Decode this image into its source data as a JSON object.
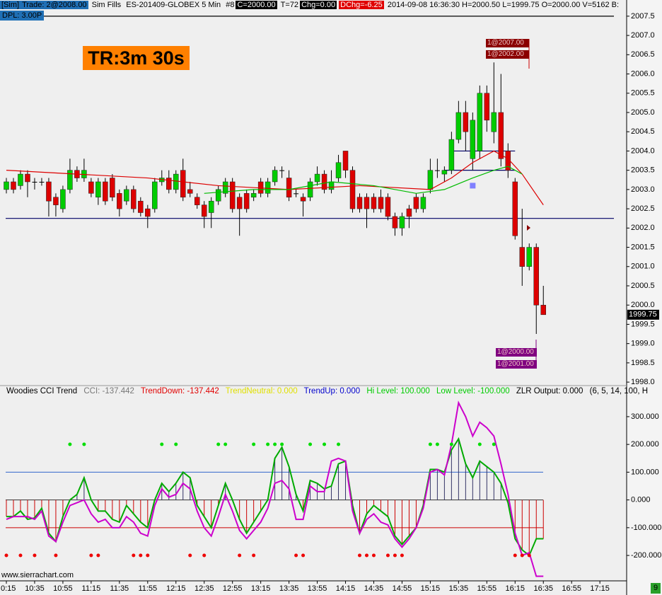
{
  "header": {
    "sim": "[Sim]",
    "trade": "Trade: 2@2008.00",
    "fills": "Sim Fills",
    "symbol": "ES-201409-GLOBEX  5 Min",
    "num": "#8",
    "close": "C=2000.00",
    "t": "T=72",
    "chg": "Chg=0.00",
    "dchg": "DChg=-6.25",
    "info": "2014-09-08 16:36:30 H=2000.50 L=1999.75 O=2000.00 V=5162 B:",
    "dpl": "DPL: 3.00P"
  },
  "timer": "TR:3m 30s",
  "orders": {
    "top": [
      "1@2007.00",
      "1@2002.00"
    ],
    "bottom": [
      "1@2000.00",
      "1@2001.00"
    ]
  },
  "indicator_legend": [
    "Woodies CCI Trend",
    "CCI: -137.442",
    "TrendDown: -137.442",
    "TrendNeutral: 0.000",
    "TrendUp: 0.000",
    "Hi Level: 100.000",
    "Low Level: -100.000",
    "ZLR Output: 0.000",
    "(6, 5, 14, 100, H"
  ],
  "website": "www.sierrachart.com",
  "corner": "9",
  "time_axis": [
    "0:15",
    "10:35",
    "10:55",
    "11:15",
    "11:35",
    "11:55",
    "12:15",
    "12:35",
    "12:55",
    "13:15",
    "13:35",
    "13:55",
    "14:15",
    "14:35",
    "14:55",
    "15:15",
    "15:35",
    "15:55",
    "16:15",
    "16:35",
    "16:55",
    "17:15"
  ],
  "chart_data": [
    {
      "type": "candlestick",
      "up_color": "#00cc00",
      "down_color": "#dd0000",
      "open": [
        2003.0,
        2003.2,
        2003.1,
        2003.4,
        2003.2,
        2003.2,
        2003.2,
        2002.8,
        2002.5,
        2003.0,
        2003.5,
        2003.3,
        2003.2,
        2002.8,
        2003.2,
        2003.3,
        2002.9,
        2002.7,
        2003.0,
        2002.7,
        2002.5,
        2002.5,
        2003.2,
        2003.3,
        2003.0,
        2003.5,
        2003.0,
        2002.8,
        2002.6,
        2002.4,
        2002.7,
        2002.9,
        2003.2,
        2002.8,
        2002.9,
        2002.8,
        2003.2,
        2002.9,
        2003.2,
        2003.5,
        2003.3,
        2002.9,
        2002.8,
        2002.8,
        2003.2,
        2003.4,
        2003.0,
        2003.3,
        2004.0,
        2003.5,
        2002.8,
        2002.8,
        2002.8,
        2002.8,
        2002.8,
        2002.3,
        2002.0,
        2002.5,
        2002.8,
        2002.5,
        2003.0,
        2003.5,
        2003.4,
        2003.5,
        2004.3,
        2005.0,
        2003.8,
        2004.0,
        2005.5,
        2004.5,
        2005.0,
        2004.0,
        2003.2,
        2001.5,
        2001.0,
        2001.5,
        2000.0
      ],
      "high": [
        2003.3,
        2003.3,
        2003.5,
        2003.5,
        2003.3,
        2003.3,
        2003.3,
        2002.9,
        2003.1,
        2003.8,
        2003.6,
        2003.8,
        2003.3,
        2003.3,
        2003.3,
        2003.4,
        2003.0,
        2003.1,
        2003.1,
        2002.8,
        2002.6,
        2003.3,
        2003.5,
        2003.5,
        2003.5,
        2003.8,
        2003.2,
        2002.9,
        2002.7,
        2002.8,
        2003.1,
        2003.3,
        2003.3,
        2002.9,
        2003.0,
        2003.0,
        2003.3,
        2003.3,
        2003.6,
        2003.6,
        2003.5,
        2003.0,
        2002.9,
        2003.3,
        2003.6,
        2003.5,
        2003.5,
        2003.9,
        2004.0,
        2003.6,
        2002.9,
        2002.9,
        2002.9,
        2003.0,
        2002.9,
        2002.4,
        2002.4,
        2002.6,
        2002.9,
        2002.9,
        2003.8,
        2003.8,
        2003.6,
        2004.5,
        2005.3,
        2005.3,
        2005.0,
        2005.7,
        2005.7,
        2006.3,
        2006.0,
        2004.2,
        2003.3,
        2002.5,
        2001.6,
        2001.6,
        2000.5
      ],
      "low": [
        2002.9,
        2002.9,
        2003.0,
        2002.8,
        2003.0,
        2003.1,
        2002.3,
        2002.3,
        2002.4,
        2002.9,
        2003.2,
        2003.2,
        2002.8,
        2002.6,
        2002.6,
        2002.7,
        2002.3,
        2002.6,
        2002.4,
        2002.3,
        2002.0,
        2002.4,
        2003.1,
        2002.9,
        2002.9,
        2002.7,
        2002.8,
        2002.5,
        2002.0,
        2002.0,
        2002.6,
        2002.8,
        2002.4,
        2001.8,
        2002.4,
        2002.7,
        2002.8,
        2002.8,
        2003.1,
        2003.3,
        2002.7,
        2002.8,
        2002.3,
        2002.7,
        2003.1,
        2002.9,
        2002.9,
        2003.2,
        2003.3,
        2002.4,
        2002.4,
        2002.0,
        2002.4,
        2002.4,
        2002.2,
        2001.8,
        2001.8,
        2002.0,
        2002.4,
        2002.4,
        2002.9,
        2003.3,
        2003.2,
        2003.4,
        2004.2,
        2004.0,
        2003.5,
        2003.8,
        2004.5,
        2004.2,
        2003.6,
        2003.3,
        2001.7,
        2000.5,
        2000.9,
        1999.25,
        1999.75
      ],
      "close": [
        2003.2,
        2003.0,
        2003.4,
        2003.2,
        2003.2,
        2003.2,
        2002.7,
        2002.6,
        2003.0,
        2003.5,
        2003.3,
        2003.5,
        2002.9,
        2003.2,
        2002.7,
        2002.8,
        2002.5,
        2003.0,
        2002.5,
        2002.4,
        2002.3,
        2003.2,
        2003.3,
        2003.0,
        2003.4,
        2002.8,
        2002.9,
        2002.6,
        2002.3,
        2002.7,
        2003.0,
        2003.2,
        2002.5,
        2002.5,
        2002.5,
        2002.9,
        2002.9,
        2003.2,
        2003.5,
        2003.5,
        2002.8,
        2002.9,
        2002.7,
        2003.2,
        2003.4,
        2003.0,
        2003.2,
        2003.7,
        2003.5,
        2002.5,
        2002.5,
        2002.5,
        2002.5,
        2002.5,
        2002.3,
        2002.0,
        2002.3,
        2002.3,
        2002.5,
        2002.8,
        2003.5,
        2003.5,
        2003.5,
        2004.3,
        2005.0,
        2004.5,
        2004.8,
        2005.5,
        2004.8,
        2005.0,
        2003.8,
        2003.5,
        2001.8,
        2001.0,
        2001.5,
        2000.0,
        1999.75
      ],
      "series": [
        {
          "name": "MA slow",
          "color": "#dd0000",
          "x": [
            0,
            10,
            20,
            30,
            40,
            50,
            60,
            63,
            66,
            69,
            71,
            73,
            76
          ],
          "values": [
            2003.5,
            2003.4,
            2003.3,
            2003.1,
            2003.0,
            2003.1,
            2003.0,
            2003.3,
            2003.7,
            2004.0,
            2003.8,
            2003.4,
            2002.6
          ]
        },
        {
          "name": "MA fast",
          "color": "#00bb00",
          "x": [
            28,
            35,
            40,
            46,
            52,
            58,
            62,
            66,
            69,
            71,
            73
          ],
          "values": [
            2002.9,
            2003.0,
            2003.0,
            2003.2,
            2003.1,
            2002.9,
            2003.0,
            2003.3,
            2003.5,
            2003.6,
            2003.4
          ]
        }
      ],
      "levels": [
        {
          "value": 2007.5,
          "color": "#000000"
        },
        {
          "value": 2002.25,
          "color": "#000066"
        },
        {
          "value": 2004.0,
          "color": "#000066",
          "from": 63,
          "to": 72
        },
        {
          "value": 2003.5,
          "color": "#000066",
          "from": 62,
          "to": 72
        }
      ],
      "markers": [
        {
          "x": 66,
          "value": 2003.1,
          "color": "#8080ff"
        }
      ],
      "last_price": 1999.75,
      "ylim": [
        1997.91,
        2007.92
      ],
      "yticks": [
        {
          "value": 1998,
          "label": "1998.0"
        },
        1998.5,
        {
          "value": 1999,
          "label": "1999.0"
        },
        1999.5,
        {
          "value": 2000,
          "label": "2000.0"
        },
        2000.5,
        {
          "value": 2001,
          "label": "2001.0"
        },
        2001.5,
        {
          "value": 2002,
          "label": "2002.0"
        },
        2002.5,
        {
          "value": 2003,
          "label": "2003.0"
        },
        2003.5,
        {
          "value": 2004,
          "label": "2004.0"
        },
        2004.5,
        {
          "value": 2005,
          "label": "2005.0"
        },
        2005.5,
        {
          "value": 2006,
          "label": "2006.0"
        },
        2006.5,
        {
          "value": 2007,
          "label": "2007.0"
        },
        2007.5
      ]
    },
    {
      "type": "line",
      "series": [
        {
          "name": "CCI",
          "color": "#00aa00",
          "values": [
            -60,
            -60,
            -40,
            -70,
            -65,
            -30,
            -120,
            -150,
            -60,
            0,
            20,
            80,
            0,
            -40,
            -40,
            -70,
            -80,
            -20,
            -50,
            -80,
            -100,
            0,
            60,
            30,
            60,
            100,
            80,
            -20,
            -60,
            -100,
            -20,
            60,
            0,
            -70,
            -120,
            -80,
            -40,
            0,
            150,
            190,
            120,
            20,
            -40,
            70,
            60,
            40,
            50,
            130,
            140,
            -20,
            -120,
            -50,
            -20,
            -40,
            -60,
            -130,
            -160,
            -130,
            -100,
            -20,
            110,
            110,
            100,
            180,
            220,
            130,
            80,
            140,
            120,
            100,
            60,
            -10,
            -140,
            -180,
            -200,
            -140,
            -140
          ]
        },
        {
          "name": "TCCI",
          "color": "#cc00cc",
          "values": [
            -70,
            -60,
            -60,
            -60,
            -70,
            -40,
            -130,
            -150,
            -80,
            -20,
            -10,
            0,
            -50,
            -80,
            -70,
            -100,
            -100,
            -60,
            -80,
            -120,
            -130,
            -20,
            40,
            10,
            20,
            60,
            40,
            -40,
            -100,
            -130,
            -60,
            20,
            -40,
            -110,
            -140,
            -110,
            -80,
            -30,
            60,
            70,
            40,
            -70,
            -70,
            50,
            30,
            30,
            140,
            150,
            140,
            -40,
            -120,
            -70,
            -50,
            -80,
            -90,
            -140,
            -170,
            -140,
            -100,
            -30,
            100,
            110,
            90,
            200,
            350,
            300,
            230,
            280,
            260,
            230,
            130,
            20,
            -120,
            -200,
            -190,
            -275,
            -275
          ]
        }
      ],
      "hist_color_positive": "#333366",
      "hist_color_negative": "#cc0000",
      "hi_level": 100,
      "low_level": -100,
      "dots_top": [
        9,
        11,
        22,
        24,
        30,
        31,
        35,
        37,
        38,
        39,
        43,
        45,
        47,
        60,
        61,
        63,
        67,
        69
      ],
      "dots_bottom": [
        0,
        2,
        4,
        7,
        12,
        13,
        18,
        19,
        20,
        26,
        28,
        33,
        35,
        41,
        42,
        50,
        51,
        52,
        54,
        55,
        56,
        72,
        73,
        74
      ],
      "ylim": [
        -289,
        361
      ],
      "yticks": [
        {
          "value": -200,
          "label": "-200.000"
        },
        {
          "value": -100,
          "label": "-100.000"
        },
        {
          "value": 0,
          "label": "0.000"
        },
        {
          "value": 100,
          "label": "100.000"
        },
        {
          "value": 200,
          "label": "200.000"
        },
        {
          "value": 300,
          "label": "300.000"
        }
      ]
    }
  ]
}
